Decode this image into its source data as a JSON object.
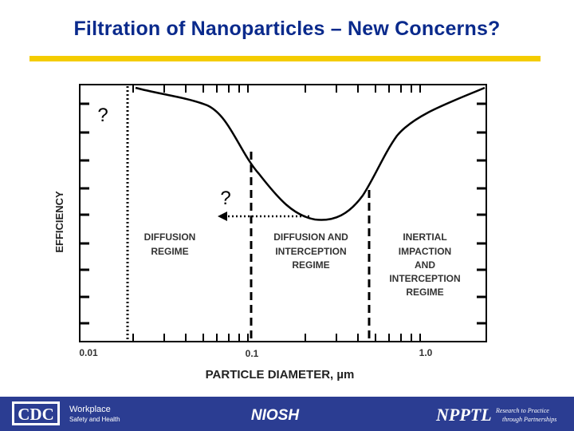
{
  "title": "Filtration of Nanoparticles – New Concerns?",
  "chart_data": {
    "type": "line",
    "ylabel": "EFFICIENCY",
    "xlabel": "PARTICLE DIAMETER, µm",
    "x_scale": "log",
    "x_ticks": [
      "0.01",
      "0.1",
      "1.0"
    ],
    "regimes": [
      {
        "label": [
          "DIFFUSION",
          "REGIME"
        ]
      },
      {
        "label": [
          "DIFFUSION AND",
          "INTERCEPTION",
          "REGIME"
        ]
      },
      {
        "label": [
          "INERTIAL",
          "IMPACTION",
          "AND",
          "INTERCEPTION",
          "REGIME"
        ]
      }
    ],
    "question_marks": [
      "?",
      "?"
    ]
  },
  "footer": {
    "cdc_logo": "CDC",
    "workplace_line1": "Workplace",
    "workplace_line2": "Safety and Health",
    "niosh_logo": "NIOSH",
    "npptl_logo": "NPPTL",
    "npptl_tagline1": "Research to Practice",
    "npptl_tagline2": "through Partnerships"
  },
  "colors": {
    "title": "#0a2a8c",
    "rule": "#f4cc00",
    "footer": "#2b3d92"
  }
}
